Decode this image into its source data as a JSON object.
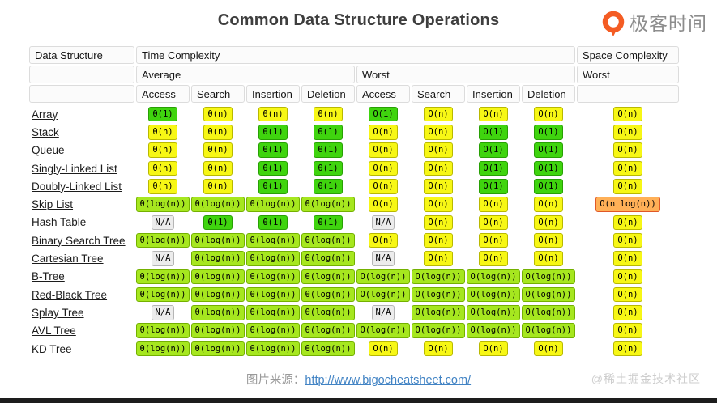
{
  "title": "Common Data Structure Operations",
  "logo": {
    "brand_text": "极客时间",
    "icon": "geektime-logo"
  },
  "colors": {
    "green": "#3fd40e",
    "green_border": "#28a004",
    "light_green": "#a6e71f",
    "light_green_border": "#74b100",
    "yellow": "#f7f715",
    "yellow_border": "#b9b900",
    "orange": "#ffb057",
    "orange_border": "#e05826",
    "na_gray": "#ececec",
    "na_gray_border": "#b5b5b5",
    "link_blue": "#4183c4",
    "logo_orange": "#f45c23"
  },
  "table": {
    "header": {
      "data_structure": "Data Structure",
      "time_complexity": "Time Complexity",
      "space_complexity": "Space Complexity",
      "average": "Average",
      "worst": "Worst",
      "space_worst": "Worst",
      "operations": [
        "Access",
        "Search",
        "Insertion",
        "Deletion",
        "Access",
        "Search",
        "Insertion",
        "Deletion"
      ]
    },
    "rows": [
      {
        "name": "Array",
        "cells": [
          [
            "θ(1)",
            "g"
          ],
          [
            "θ(n)",
            "y"
          ],
          [
            "θ(n)",
            "y"
          ],
          [
            "θ(n)",
            "y"
          ],
          [
            "O(1)",
            "g"
          ],
          [
            "O(n)",
            "y"
          ],
          [
            "O(n)",
            "y"
          ],
          [
            "O(n)",
            "y"
          ],
          [
            "O(n)",
            "y"
          ]
        ]
      },
      {
        "name": "Stack",
        "cells": [
          [
            "θ(n)",
            "y"
          ],
          [
            "θ(n)",
            "y"
          ],
          [
            "θ(1)",
            "g"
          ],
          [
            "θ(1)",
            "g"
          ],
          [
            "O(n)",
            "y"
          ],
          [
            "O(n)",
            "y"
          ],
          [
            "O(1)",
            "g"
          ],
          [
            "O(1)",
            "g"
          ],
          [
            "O(n)",
            "y"
          ]
        ]
      },
      {
        "name": "Queue",
        "cells": [
          [
            "θ(n)",
            "y"
          ],
          [
            "θ(n)",
            "y"
          ],
          [
            "θ(1)",
            "g"
          ],
          [
            "θ(1)",
            "g"
          ],
          [
            "O(n)",
            "y"
          ],
          [
            "O(n)",
            "y"
          ],
          [
            "O(1)",
            "g"
          ],
          [
            "O(1)",
            "g"
          ],
          [
            "O(n)",
            "y"
          ]
        ]
      },
      {
        "name": "Singly-Linked List",
        "cells": [
          [
            "θ(n)",
            "y"
          ],
          [
            "θ(n)",
            "y"
          ],
          [
            "θ(1)",
            "g"
          ],
          [
            "θ(1)",
            "g"
          ],
          [
            "O(n)",
            "y"
          ],
          [
            "O(n)",
            "y"
          ],
          [
            "O(1)",
            "g"
          ],
          [
            "O(1)",
            "g"
          ],
          [
            "O(n)",
            "y"
          ]
        ]
      },
      {
        "name": "Doubly-Linked List",
        "cells": [
          [
            "θ(n)",
            "y"
          ],
          [
            "θ(n)",
            "y"
          ],
          [
            "θ(1)",
            "g"
          ],
          [
            "θ(1)",
            "g"
          ],
          [
            "O(n)",
            "y"
          ],
          [
            "O(n)",
            "y"
          ],
          [
            "O(1)",
            "g"
          ],
          [
            "O(1)",
            "g"
          ],
          [
            "O(n)",
            "y"
          ]
        ]
      },
      {
        "name": "Skip List",
        "cells": [
          [
            "θ(log(n))",
            "lg"
          ],
          [
            "θ(log(n))",
            "lg"
          ],
          [
            "θ(log(n))",
            "lg"
          ],
          [
            "θ(log(n))",
            "lg"
          ],
          [
            "O(n)",
            "y"
          ],
          [
            "O(n)",
            "y"
          ],
          [
            "O(n)",
            "y"
          ],
          [
            "O(n)",
            "y"
          ],
          [
            "O(n log(n))",
            "o"
          ]
        ]
      },
      {
        "name": "Hash Table",
        "cells": [
          [
            "N/A",
            "na"
          ],
          [
            "θ(1)",
            "g"
          ],
          [
            "θ(1)",
            "g"
          ],
          [
            "θ(1)",
            "g"
          ],
          [
            "N/A",
            "na"
          ],
          [
            "O(n)",
            "y"
          ],
          [
            "O(n)",
            "y"
          ],
          [
            "O(n)",
            "y"
          ],
          [
            "O(n)",
            "y"
          ]
        ]
      },
      {
        "name": "Binary Search Tree",
        "cells": [
          [
            "θ(log(n))",
            "lg"
          ],
          [
            "θ(log(n))",
            "lg"
          ],
          [
            "θ(log(n))",
            "lg"
          ],
          [
            "θ(log(n))",
            "lg"
          ],
          [
            "O(n)",
            "y"
          ],
          [
            "O(n)",
            "y"
          ],
          [
            "O(n)",
            "y"
          ],
          [
            "O(n)",
            "y"
          ],
          [
            "O(n)",
            "y"
          ]
        ]
      },
      {
        "name": "Cartesian Tree",
        "cells": [
          [
            "N/A",
            "na"
          ],
          [
            "θ(log(n))",
            "lg"
          ],
          [
            "θ(log(n))",
            "lg"
          ],
          [
            "θ(log(n))",
            "lg"
          ],
          [
            "N/A",
            "na"
          ],
          [
            "O(n)",
            "y"
          ],
          [
            "O(n)",
            "y"
          ],
          [
            "O(n)",
            "y"
          ],
          [
            "O(n)",
            "y"
          ]
        ]
      },
      {
        "name": "B-Tree",
        "cells": [
          [
            "θ(log(n))",
            "lg"
          ],
          [
            "θ(log(n))",
            "lg"
          ],
          [
            "θ(log(n))",
            "lg"
          ],
          [
            "θ(log(n))",
            "lg"
          ],
          [
            "O(log(n))",
            "lg"
          ],
          [
            "O(log(n))",
            "lg"
          ],
          [
            "O(log(n))",
            "lg"
          ],
          [
            "O(log(n))",
            "lg"
          ],
          [
            "O(n)",
            "y"
          ]
        ]
      },
      {
        "name": "Red-Black Tree",
        "cells": [
          [
            "θ(log(n))",
            "lg"
          ],
          [
            "θ(log(n))",
            "lg"
          ],
          [
            "θ(log(n))",
            "lg"
          ],
          [
            "θ(log(n))",
            "lg"
          ],
          [
            "O(log(n))",
            "lg"
          ],
          [
            "O(log(n))",
            "lg"
          ],
          [
            "O(log(n))",
            "lg"
          ],
          [
            "O(log(n))",
            "lg"
          ],
          [
            "O(n)",
            "y"
          ]
        ]
      },
      {
        "name": "Splay Tree",
        "cells": [
          [
            "N/A",
            "na"
          ],
          [
            "θ(log(n))",
            "lg"
          ],
          [
            "θ(log(n))",
            "lg"
          ],
          [
            "θ(log(n))",
            "lg"
          ],
          [
            "N/A",
            "na"
          ],
          [
            "O(log(n))",
            "lg"
          ],
          [
            "O(log(n))",
            "lg"
          ],
          [
            "O(log(n))",
            "lg"
          ],
          [
            "O(n)",
            "y"
          ]
        ]
      },
      {
        "name": "AVL Tree",
        "cells": [
          [
            "θ(log(n))",
            "lg"
          ],
          [
            "θ(log(n))",
            "lg"
          ],
          [
            "θ(log(n))",
            "lg"
          ],
          [
            "θ(log(n))",
            "lg"
          ],
          [
            "O(log(n))",
            "lg"
          ],
          [
            "O(log(n))",
            "lg"
          ],
          [
            "O(log(n))",
            "lg"
          ],
          [
            "O(log(n))",
            "lg"
          ],
          [
            "O(n)",
            "y"
          ]
        ]
      },
      {
        "name": "KD Tree",
        "cells": [
          [
            "θ(log(n))",
            "lg"
          ],
          [
            "θ(log(n))",
            "lg"
          ],
          [
            "θ(log(n))",
            "lg"
          ],
          [
            "θ(log(n))",
            "lg"
          ],
          [
            "O(n)",
            "y"
          ],
          [
            "O(n)",
            "y"
          ],
          [
            "O(n)",
            "y"
          ],
          [
            "O(n)",
            "y"
          ],
          [
            "O(n)",
            "y"
          ]
        ]
      }
    ]
  },
  "footer": {
    "source_label": "图片来源：",
    "source_url": "http://www.bigocheatsheet.com/",
    "watermark": "@稀土掘金技术社区"
  }
}
